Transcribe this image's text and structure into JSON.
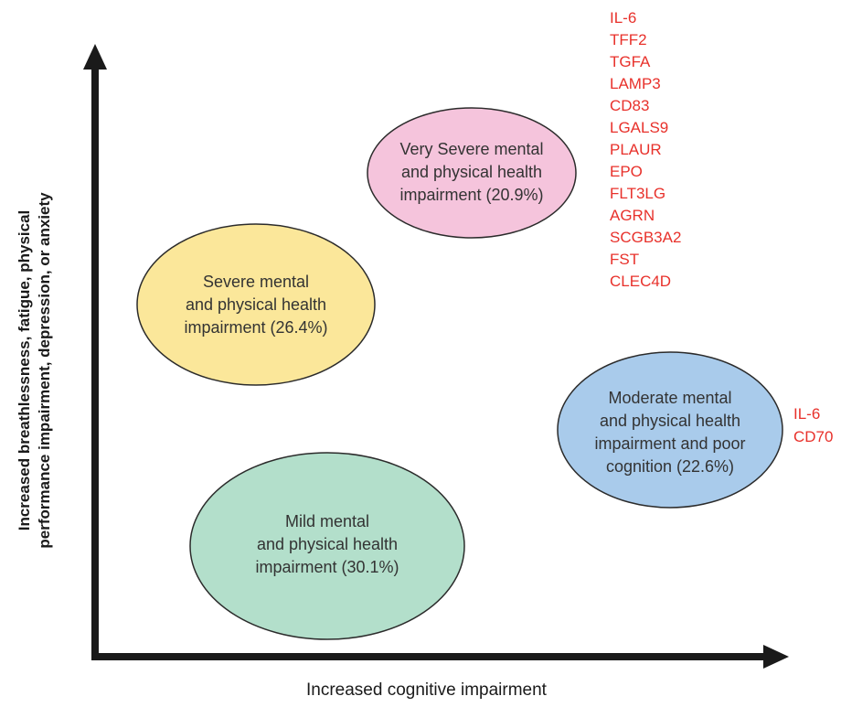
{
  "axes": {
    "x_label": "Increased cognitive impairment",
    "y_label_lines": [
      "Increased breathlessness, fatigue, physical",
      "performance impairment, depression, or anxiety"
    ]
  },
  "clusters": [
    {
      "id": "very-severe",
      "lines": [
        "Very Severe mental",
        "and physical health",
        "impairment (20.9%)"
      ],
      "fill": "#f5c4dc"
    },
    {
      "id": "severe",
      "lines": [
        "Severe mental",
        "and physical health",
        "impairment (26.4%)"
      ],
      "fill": "#fbe79a"
    },
    {
      "id": "moderate",
      "lines": [
        "Moderate mental",
        "and physical health",
        "impairment and poor",
        "cognition (22.6%)"
      ],
      "fill": "#a9cbeb"
    },
    {
      "id": "mild",
      "lines": [
        "Mild mental",
        "and physical health",
        "impairment (30.1%)"
      ],
      "fill": "#b3dfcb"
    }
  ],
  "marker_lists": {
    "very_severe": [
      "IL-6",
      "TFF2",
      "TGFA",
      "LAMP3",
      "CD83",
      "LGALS9",
      "PLAUR",
      "EPO",
      "FLT3LG",
      "AGRN",
      "SCGB3A2",
      "FST",
      "CLEC4D"
    ],
    "moderate": [
      "IL-6",
      "CD70"
    ]
  },
  "colors": {
    "marker_text": "#e8312b",
    "axis": "#1a1a1a"
  }
}
